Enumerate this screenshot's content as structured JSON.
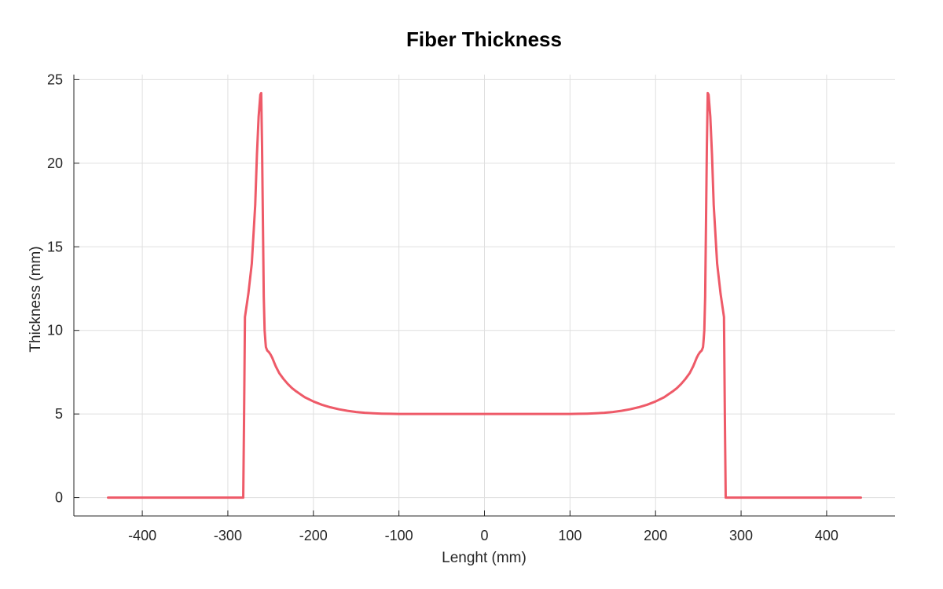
{
  "chart_data": {
    "type": "line",
    "title": "Fiber Thickness",
    "xlabel": "Lenght (mm)",
    "ylabel": "Thickness (mm)",
    "xlim": [
      -480,
      480
    ],
    "ylim": [
      -1.1,
      25.3
    ],
    "xticks": [
      -400,
      -300,
      -200,
      -100,
      0,
      100,
      200,
      300,
      400
    ],
    "yticks": [
      0,
      5,
      10,
      15,
      20,
      25
    ],
    "grid": true,
    "legend": "none",
    "series": [
      {
        "color": "#EE5A68",
        "x": [
          -440,
          -282,
          -281,
          -280,
          -276,
          -272,
          -268,
          -266,
          -264,
          -262,
          -261,
          -260,
          -258,
          -257,
          -256,
          -255.5,
          -254,
          -253,
          -252,
          -250,
          -248,
          -246,
          -244,
          -240,
          -235,
          -230,
          -225,
          -220,
          -210,
          -200,
          -190,
          -180,
          -170,
          -160,
          -150,
          -140,
          -130,
          -120,
          -110,
          -100,
          -50,
          0,
          50,
          100,
          110,
          120,
          130,
          140,
          150,
          160,
          170,
          180,
          190,
          200,
          210,
          220,
          225,
          230,
          235,
          240,
          244,
          246,
          248,
          250,
          252,
          253,
          254,
          255.5,
          256,
          257,
          258,
          260,
          261,
          262,
          264,
          266,
          268,
          272,
          276,
          280,
          281,
          282,
          440
        ],
        "y": [
          0,
          0,
          5,
          10.8,
          12.2,
          14,
          17.5,
          20.5,
          22.8,
          24.1,
          24.2,
          21,
          12,
          10,
          9.3,
          9.0,
          8.8,
          8.75,
          8.7,
          8.55,
          8.35,
          8.1,
          7.85,
          7.45,
          7.1,
          6.8,
          6.55,
          6.35,
          6.0,
          5.75,
          5.55,
          5.4,
          5.28,
          5.19,
          5.12,
          5.07,
          5.04,
          5.02,
          5.01,
          5.0,
          5.0,
          5.0,
          5.0,
          5.0,
          5.01,
          5.02,
          5.04,
          5.07,
          5.12,
          5.19,
          5.28,
          5.4,
          5.55,
          5.75,
          6.0,
          6.35,
          6.55,
          6.8,
          7.1,
          7.45,
          7.85,
          8.1,
          8.35,
          8.55,
          8.7,
          8.75,
          8.8,
          9.0,
          9.3,
          10,
          12,
          21,
          24.2,
          24.1,
          22.8,
          20.5,
          17.5,
          14,
          12.2,
          10.8,
          5,
          0,
          0
        ]
      }
    ]
  }
}
